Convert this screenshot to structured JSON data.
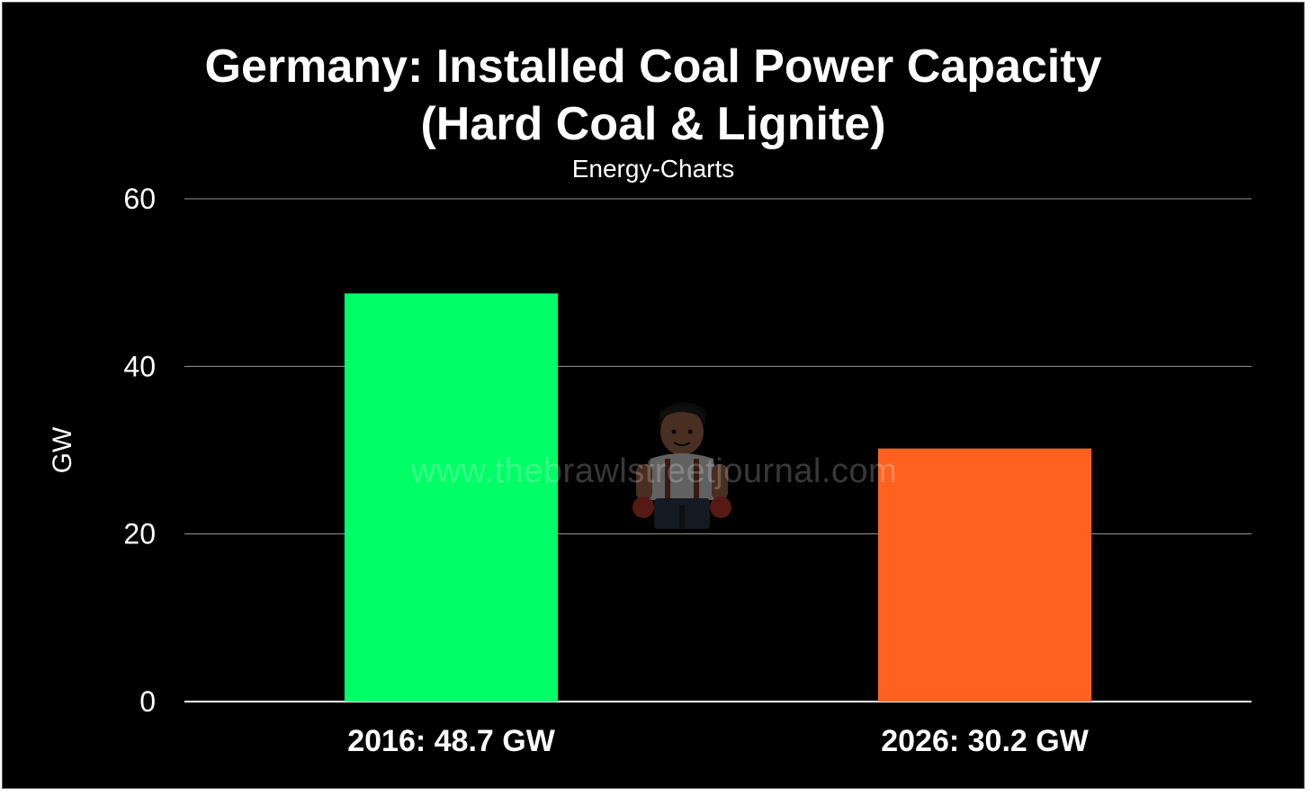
{
  "chart_data": {
    "type": "bar",
    "title_lines": [
      "Germany: Installed Coal Power Capacity",
      "(Hard Coal & Lignite)"
    ],
    "subtitle": "Energy-Charts",
    "ylabel": "GW",
    "xlabel": "",
    "ylim": [
      0,
      60
    ],
    "yticks": [
      0,
      20,
      40,
      60
    ],
    "categories": [
      "2016: 48.7 GW",
      "2026: 30.2 GW"
    ],
    "values": [
      48.7,
      30.2
    ],
    "bar_colors": [
      "#00ff66",
      "#ff6220"
    ],
    "grid": true,
    "legend": "none"
  },
  "watermark": "www.thebrawlstreetjournal.com",
  "colors": {
    "background": "#000000",
    "text": "#ffffff",
    "grid": "#9a9a9a"
  }
}
